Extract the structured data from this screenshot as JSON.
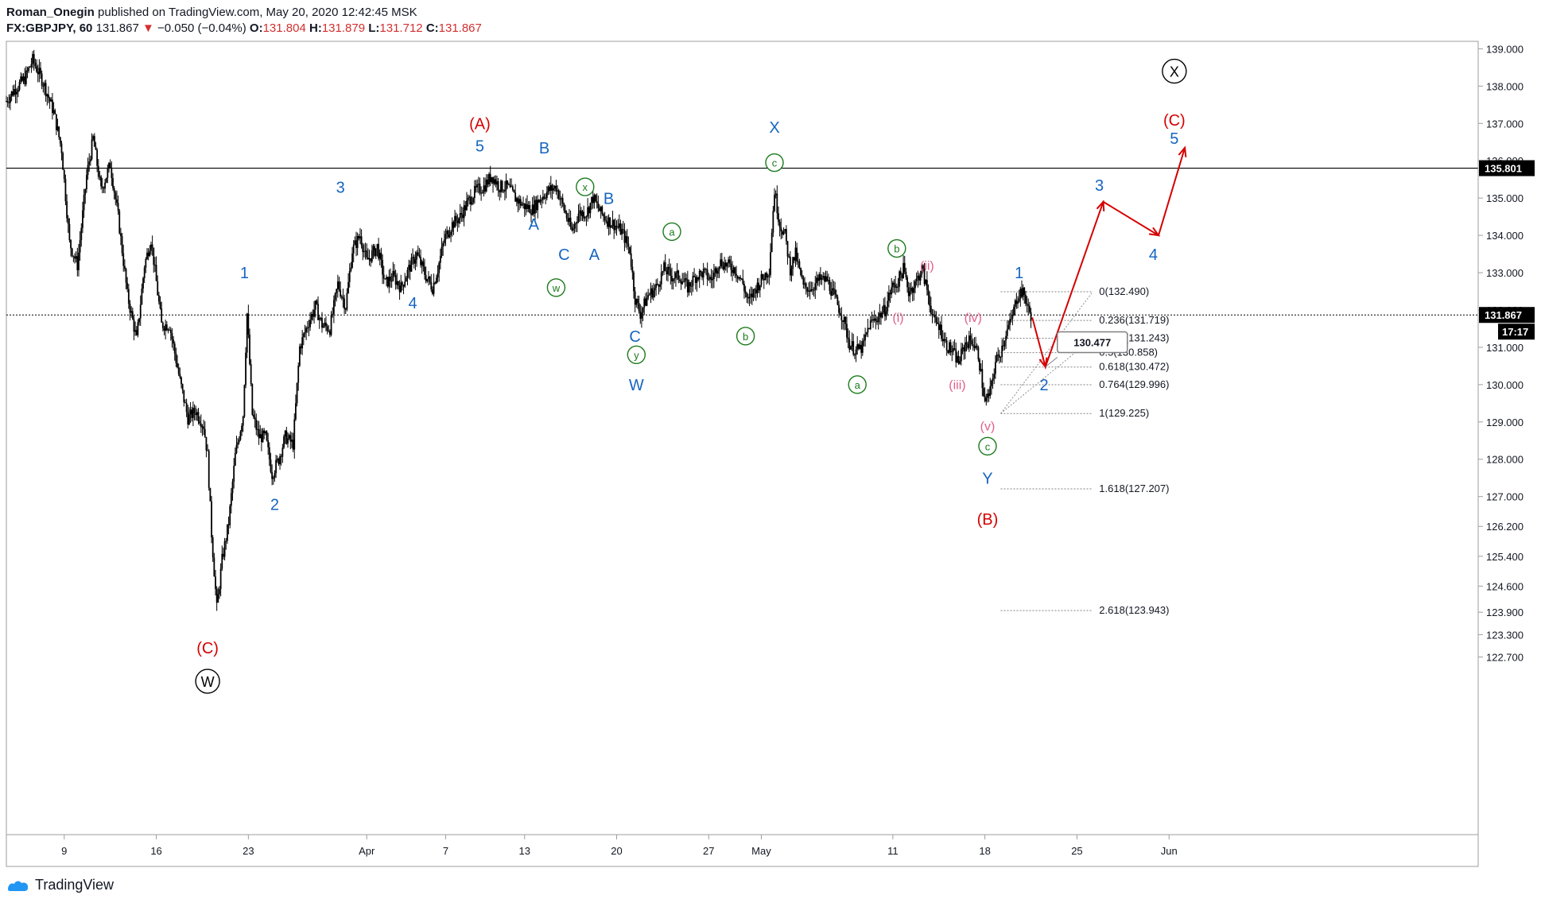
{
  "header": {
    "author": "Roman_Onegin",
    "published": "published on TradingView.com, May 20, 2020 12:42:45 MSK",
    "symbol": "FX:GBPJPY, 60",
    "last": "131.867",
    "change_arrow": "▼",
    "change": "−0.050 (−0.04%)",
    "o_label": "O:",
    "o_value": "131.804",
    "h_label": "H:",
    "h_value": "131.879",
    "l_label": "L:",
    "l_value": "131.712",
    "c_label": "C:",
    "c_value": "131.867"
  },
  "footer": {
    "brand": "TradingView",
    "logo_icon": "tradingview-logo-icon"
  },
  "colors": {
    "red": "#d50000",
    "blue": "#1565c0",
    "green": "#1b7a1b",
    "pink": "#e0608a",
    "black": "#000000",
    "grid": "#c8c8c8"
  },
  "chart_data": {
    "type": "candlestick",
    "title": "FX:GBPJPY, 60",
    "ylim": [
      122.2,
      139.2
    ],
    "y_ticks": [
      "139.000",
      "138.000",
      "137.000",
      "136.000",
      "135.000",
      "134.000",
      "133.000",
      "132.000",
      "131.000",
      "130.000",
      "129.000",
      "128.000",
      "127.000",
      "126.200",
      "125.400",
      "124.600",
      "123.900",
      "123.300",
      "122.700"
    ],
    "y_tick_values": [
      139,
      138,
      137,
      136,
      135,
      134,
      133,
      132,
      131,
      130,
      129,
      128,
      127,
      126.2,
      125.4,
      124.6,
      123.9,
      123.3,
      122.7
    ],
    "x_ticks": [
      "9",
      "16",
      "23",
      "Apr",
      "7",
      "13",
      "20",
      "27",
      "May",
      "11",
      "18",
      "25",
      "Jun"
    ],
    "x_tick_days": [
      9,
      16,
      23,
      32,
      38,
      44,
      51,
      58,
      62,
      72,
      79,
      86,
      93
    ],
    "x_start_day": 4.6,
    "x_end_day": 94.8,
    "price_path": [
      [
        4.6,
        137.6
      ],
      [
        5.2,
        137.9
      ],
      [
        6.0,
        138.2
      ],
      [
        6.6,
        138.7
      ],
      [
        7.4,
        138.1
      ],
      [
        8.2,
        137.3
      ],
      [
        8.8,
        136.3
      ],
      [
        9.4,
        133.8
      ],
      [
        10.0,
        133.2
      ],
      [
        10.7,
        135.6
      ],
      [
        11.2,
        136.6
      ],
      [
        11.8,
        135.2
      ],
      [
        12.5,
        135.9
      ],
      [
        13.1,
        134.5
      ],
      [
        13.8,
        132.4
      ],
      [
        14.5,
        131.2
      ],
      [
        15.1,
        133.2
      ],
      [
        15.6,
        133.9
      ],
      [
        16.4,
        131.6
      ],
      [
        17.0,
        131.6
      ],
      [
        17.8,
        130.1
      ],
      [
        18.4,
        129.1
      ],
      [
        19.0,
        129.3
      ],
      [
        19.6,
        128.9
      ],
      [
        19.9,
        128.1
      ],
      [
        20.2,
        126.0
      ],
      [
        20.6,
        124.0
      ],
      [
        21.0,
        125.3
      ],
      [
        21.5,
        126.3
      ],
      [
        22.0,
        128.1
      ],
      [
        22.6,
        129.2
      ],
      [
        22.9,
        131.9
      ],
      [
        23.3,
        129.2
      ],
      [
        23.8,
        128.6
      ],
      [
        24.3,
        128.6
      ],
      [
        24.8,
        127.6
      ],
      [
        25.3,
        128.0
      ],
      [
        25.8,
        128.6
      ],
      [
        26.4,
        128.4
      ],
      [
        26.9,
        131.0
      ],
      [
        27.5,
        131.6
      ],
      [
        28.1,
        132.1
      ],
      [
        28.6,
        131.6
      ],
      [
        29.2,
        131.5
      ],
      [
        29.8,
        132.7
      ],
      [
        30.4,
        132.1
      ],
      [
        30.9,
        133.6
      ],
      [
        31.5,
        134.0
      ],
      [
        32.0,
        133.3
      ],
      [
        32.8,
        133.7
      ],
      [
        33.4,
        132.7
      ],
      [
        34.0,
        132.9
      ],
      [
        34.6,
        132.6
      ],
      [
        35.2,
        133.1
      ],
      [
        35.8,
        133.5
      ],
      [
        36.5,
        132.9
      ],
      [
        37.0,
        132.6
      ],
      [
        37.4,
        133.1
      ],
      [
        37.9,
        133.9
      ],
      [
        38.5,
        134.3
      ],
      [
        39.1,
        134.5
      ],
      [
        39.7,
        134.9
      ],
      [
        40.3,
        135.2
      ],
      [
        40.9,
        135.3
      ],
      [
        41.5,
        135.6
      ],
      [
        42.1,
        135.3
      ],
      [
        42.7,
        135.3
      ],
      [
        43.3,
        135.0
      ],
      [
        43.9,
        134.8
      ],
      [
        44.6,
        134.7
      ],
      [
        45.2,
        135.0
      ],
      [
        45.8,
        135.2
      ],
      [
        46.4,
        135.3
      ],
      [
        47.0,
        134.7
      ],
      [
        47.6,
        134.1
      ],
      [
        48.1,
        134.6
      ],
      [
        48.7,
        134.6
      ],
      [
        49.2,
        135.0
      ],
      [
        49.8,
        134.6
      ],
      [
        50.3,
        134.4
      ],
      [
        50.8,
        134.3
      ],
      [
        51.4,
        134.1
      ],
      [
        52.0,
        133.6
      ],
      [
        52.4,
        132.3
      ],
      [
        52.8,
        131.9
      ],
      [
        53.4,
        132.4
      ],
      [
        54.0,
        132.6
      ],
      [
        54.6,
        133.1
      ],
      [
        55.2,
        132.9
      ],
      [
        55.8,
        132.9
      ],
      [
        56.4,
        132.6
      ],
      [
        57.0,
        132.9
      ],
      [
        57.6,
        133.0
      ],
      [
        58.2,
        132.8
      ],
      [
        58.8,
        133.3
      ],
      [
        59.4,
        133.2
      ],
      [
        60.0,
        133.1
      ],
      [
        60.6,
        132.7
      ],
      [
        61.0,
        132.2
      ],
      [
        61.6,
        132.6
      ],
      [
        62.2,
        132.9
      ],
      [
        62.6,
        133.1
      ],
      [
        63.0,
        135.2
      ],
      [
        63.4,
        134.3
      ],
      [
        63.8,
        134.0
      ],
      [
        64.2,
        133.1
      ],
      [
        64.6,
        133.5
      ],
      [
        65.2,
        132.6
      ],
      [
        65.8,
        132.6
      ],
      [
        66.4,
        132.8
      ],
      [
        67.0,
        132.8
      ],
      [
        67.6,
        132.3
      ],
      [
        68.2,
        131.8
      ],
      [
        68.7,
        131.1
      ],
      [
        69.2,
        130.9
      ],
      [
        69.7,
        131.0
      ],
      [
        70.2,
        131.6
      ],
      [
        70.8,
        131.8
      ],
      [
        71.4,
        132.0
      ],
      [
        71.9,
        132.6
      ],
      [
        72.3,
        132.7
      ],
      [
        72.8,
        133.1
      ],
      [
        73.2,
        132.5
      ],
      [
        73.7,
        132.7
      ],
      [
        74.2,
        133.1
      ],
      [
        74.7,
        132.4
      ],
      [
        75.1,
        131.7
      ],
      [
        75.5,
        131.6
      ],
      [
        76.0,
        131.1
      ],
      [
        76.5,
        130.9
      ],
      [
        77.0,
        130.6
      ],
      [
        77.5,
        131.1
      ],
      [
        78.0,
        131.2
      ],
      [
        78.5,
        130.8
      ],
      [
        79.0,
        129.5
      ],
      [
        79.4,
        129.8
      ],
      [
        79.8,
        130.6
      ],
      [
        80.2,
        130.9
      ],
      [
        80.6,
        131.4
      ],
      [
        81.0,
        131.7
      ],
      [
        81.4,
        132.3
      ],
      [
        81.7,
        132.5
      ],
      [
        82.0,
        132.4
      ],
      [
        82.3,
        132.0
      ],
      [
        82.6,
        131.8
      ]
    ],
    "forecast_path": [
      [
        82.6,
        131.8
      ],
      [
        83.6,
        130.477
      ],
      [
        88.0,
        134.9
      ],
      [
        92.2,
        134.0
      ],
      [
        94.2,
        136.35
      ]
    ],
    "horizontal_lines": [
      {
        "name": "resistance",
        "value": 135.801,
        "label": "135.801",
        "style": "solid"
      },
      {
        "name": "last-price",
        "value": 131.867,
        "label": "131.867",
        "style": "dotted"
      }
    ],
    "countdown": "17:17",
    "price_marker": "130.477",
    "fib": {
      "x_start_day": 80.2,
      "x_end_day": 87.2,
      "levels": [
        {
          "label": "0(132.490)",
          "value": 132.49
        },
        {
          "label": "0.236(131.719)",
          "value": 131.719
        },
        {
          "label": "0.382(131.243)",
          "value": 131.243
        },
        {
          "label": "0.5(130.858)",
          "value": 130.858
        },
        {
          "label": "0.618(130.472)",
          "value": 130.472
        },
        {
          "label": "0.764(129.996)",
          "value": 129.996
        },
        {
          "label": "1(129.225)",
          "value": 129.225
        },
        {
          "label": "1.618(127.207)",
          "value": 127.207
        },
        {
          "label": "2.618(123.943)",
          "value": 123.943
        }
      ]
    },
    "wave_labels": [
      {
        "text": "(A)",
        "day": 40.6,
        "price": 137.0,
        "color": "red",
        "style": "plain",
        "size": 20
      },
      {
        "text": "(C)",
        "day": 19.9,
        "price": 122.95,
        "color": "red",
        "style": "plain",
        "size": 20
      },
      {
        "text": "W",
        "day": 19.9,
        "price": 122.05,
        "color": "black",
        "style": "circle",
        "size": 18
      },
      {
        "text": "(B)",
        "day": 79.2,
        "price": 126.4,
        "color": "red",
        "style": "plain",
        "size": 20
      },
      {
        "text": "X",
        "day": 93.4,
        "price": 138.4,
        "color": "black",
        "style": "circle",
        "size": 18
      },
      {
        "text": "(C)",
        "day": 93.4,
        "price": 137.1,
        "color": "red",
        "style": "plain",
        "size": 20
      },
      {
        "text": "1",
        "day": 22.7,
        "price": 133.0,
        "color": "blue",
        "style": "plain",
        "size": 20
      },
      {
        "text": "2",
        "day": 25.0,
        "price": 126.8,
        "color": "blue",
        "style": "plain",
        "size": 20
      },
      {
        "text": "3",
        "day": 30.0,
        "price": 135.3,
        "color": "blue",
        "style": "plain",
        "size": 20
      },
      {
        "text": "4",
        "day": 35.5,
        "price": 132.2,
        "color": "blue",
        "style": "plain",
        "size": 20
      },
      {
        "text": "5",
        "day": 40.6,
        "price": 136.4,
        "color": "blue",
        "style": "plain",
        "size": 20
      },
      {
        "text": "B",
        "day": 45.5,
        "price": 136.35,
        "color": "blue",
        "style": "plain",
        "size": 20
      },
      {
        "text": "A",
        "day": 44.7,
        "price": 134.3,
        "color": "blue",
        "style": "plain",
        "size": 20
      },
      {
        "text": "C",
        "day": 47.0,
        "price": 133.5,
        "color": "blue",
        "style": "plain",
        "size": 20
      },
      {
        "text": "x",
        "day": 48.6,
        "price": 135.3,
        "color": "green",
        "style": "circle",
        "size": 13
      },
      {
        "text": "B",
        "day": 50.4,
        "price": 135.0,
        "color": "blue",
        "style": "plain",
        "size": 20
      },
      {
        "text": "A",
        "day": 49.3,
        "price": 133.5,
        "color": "blue",
        "style": "plain",
        "size": 20
      },
      {
        "text": "w",
        "day": 46.4,
        "price": 132.6,
        "color": "green",
        "style": "circle",
        "size": 13
      },
      {
        "text": "C",
        "day": 52.4,
        "price": 131.3,
        "color": "blue",
        "style": "plain",
        "size": 20
      },
      {
        "text": "y",
        "day": 52.5,
        "price": 130.8,
        "color": "green",
        "style": "circle",
        "size": 13
      },
      {
        "text": "W",
        "day": 52.5,
        "price": 130.0,
        "color": "blue",
        "style": "plain",
        "size": 20
      },
      {
        "text": "a",
        "day": 55.2,
        "price": 134.1,
        "color": "green",
        "style": "circle",
        "size": 13
      },
      {
        "text": "b",
        "day": 60.8,
        "price": 131.3,
        "color": "green",
        "style": "circle",
        "size": 13
      },
      {
        "text": "X",
        "day": 63.0,
        "price": 136.9,
        "color": "blue",
        "style": "plain",
        "size": 20
      },
      {
        "text": "c",
        "day": 63.0,
        "price": 135.95,
        "color": "green",
        "style": "circle",
        "size": 13
      },
      {
        "text": "b",
        "day": 72.3,
        "price": 133.65,
        "color": "green",
        "style": "circle",
        "size": 13
      },
      {
        "text": "a",
        "day": 69.3,
        "price": 130.0,
        "color": "green",
        "style": "circle",
        "size": 13
      },
      {
        "text": "(i)",
        "day": 72.4,
        "price": 131.8,
        "color": "pink",
        "style": "plain",
        "size": 16
      },
      {
        "text": "(ii)",
        "day": 74.6,
        "price": 133.2,
        "color": "pink",
        "style": "plain",
        "size": 16
      },
      {
        "text": "(iii)",
        "day": 76.9,
        "price": 130.0,
        "color": "pink",
        "style": "plain",
        "size": 16
      },
      {
        "text": "(iv)",
        "day": 78.1,
        "price": 131.8,
        "color": "pink",
        "style": "plain",
        "size": 16
      },
      {
        "text": "(v)",
        "day": 79.2,
        "price": 128.9,
        "color": "pink",
        "style": "plain",
        "size": 16
      },
      {
        "text": "c",
        "day": 79.2,
        "price": 128.35,
        "color": "green",
        "style": "circle",
        "size": 13
      },
      {
        "text": "Y",
        "day": 79.2,
        "price": 127.5,
        "color": "blue",
        "style": "plain",
        "size": 20
      },
      {
        "text": "1",
        "day": 81.6,
        "price": 133.0,
        "color": "blue",
        "style": "plain",
        "size": 20
      },
      {
        "text": "2",
        "day": 83.5,
        "price": 130.0,
        "color": "blue",
        "style": "plain",
        "size": 20
      },
      {
        "text": "3",
        "day": 87.7,
        "price": 135.35,
        "color": "blue",
        "style": "plain",
        "size": 20
      },
      {
        "text": "4",
        "day": 91.8,
        "price": 133.5,
        "color": "blue",
        "style": "plain",
        "size": 20
      },
      {
        "text": "5",
        "day": 93.4,
        "price": 136.6,
        "color": "blue",
        "style": "plain",
        "size": 20
      }
    ]
  }
}
